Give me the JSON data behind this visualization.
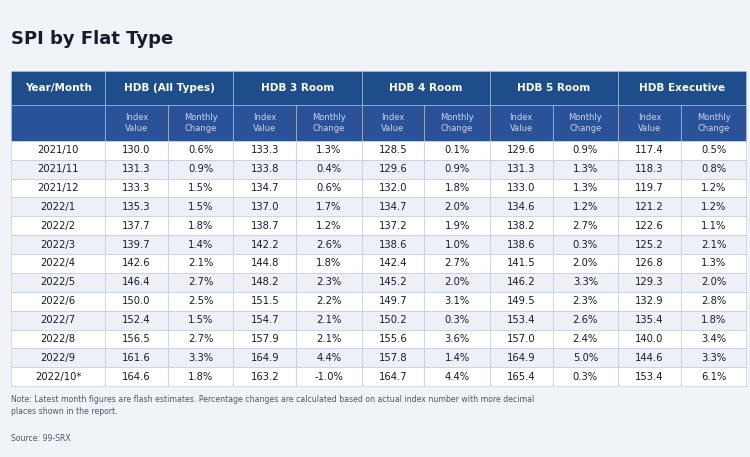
{
  "title": "SPI by Flat Type",
  "col_groups": [
    {
      "label": "Year/Month",
      "span": 1
    },
    {
      "label": "HDB (All Types)",
      "span": 2
    },
    {
      "label": "HDB 3 Room",
      "span": 2
    },
    {
      "label": "HDB 4 Room",
      "span": 2
    },
    {
      "label": "HDB 5 Room",
      "span": 2
    },
    {
      "label": "HDB Executive",
      "span": 2
    }
  ],
  "sub_headers": [
    "Index\nValue",
    "Monthly\nChange",
    "Index\nValue",
    "Monthly\nChange",
    "Index\nValue",
    "Monthly\nChange",
    "Index\nValue",
    "Monthly\nChange",
    "Index\nValue",
    "Monthly\nChange"
  ],
  "rows": [
    [
      "2021/10",
      "130.0",
      "0.6%",
      "133.3",
      "1.3%",
      "128.5",
      "0.1%",
      "129.6",
      "0.9%",
      "117.4",
      "0.5%"
    ],
    [
      "2021/11",
      "131.3",
      "0.9%",
      "133.8",
      "0.4%",
      "129.6",
      "0.9%",
      "131.3",
      "1.3%",
      "118.3",
      "0.8%"
    ],
    [
      "2021/12",
      "133.3",
      "1.5%",
      "134.7",
      "0.6%",
      "132.0",
      "1.8%",
      "133.0",
      "1.3%",
      "119.7",
      "1.2%"
    ],
    [
      "2022/1",
      "135.3",
      "1.5%",
      "137.0",
      "1.7%",
      "134.7",
      "2.0%",
      "134.6",
      "1.2%",
      "121.2",
      "1.2%"
    ],
    [
      "2022/2",
      "137.7",
      "1.8%",
      "138.7",
      "1.2%",
      "137.2",
      "1.9%",
      "138.2",
      "2.7%",
      "122.6",
      "1.1%"
    ],
    [
      "2022/3",
      "139.7",
      "1.4%",
      "142.2",
      "2.6%",
      "138.6",
      "1.0%",
      "138.6",
      "0.3%",
      "125.2",
      "2.1%"
    ],
    [
      "2022/4",
      "142.6",
      "2.1%",
      "144.8",
      "1.8%",
      "142.4",
      "2.7%",
      "141.5",
      "2.0%",
      "126.8",
      "1.3%"
    ],
    [
      "2022/5",
      "146.4",
      "2.7%",
      "148.2",
      "2.3%",
      "145.2",
      "2.0%",
      "146.2",
      "3.3%",
      "129.3",
      "2.0%"
    ],
    [
      "2022/6",
      "150.0",
      "2.5%",
      "151.5",
      "2.2%",
      "149.7",
      "3.1%",
      "149.5",
      "2.3%",
      "132.9",
      "2.8%"
    ],
    [
      "2022/7",
      "152.4",
      "1.5%",
      "154.7",
      "2.1%",
      "150.2",
      "0.3%",
      "153.4",
      "2.6%",
      "135.4",
      "1.8%"
    ],
    [
      "2022/8",
      "156.5",
      "2.7%",
      "157.9",
      "2.1%",
      "155.6",
      "3.6%",
      "157.0",
      "2.4%",
      "140.0",
      "3.4%"
    ],
    [
      "2022/9",
      "161.6",
      "3.3%",
      "164.9",
      "4.4%",
      "157.8",
      "1.4%",
      "164.9",
      "5.0%",
      "144.6",
      "3.3%"
    ],
    [
      "2022/10*",
      "164.6",
      "1.8%",
      "163.2",
      "-1.0%",
      "164.7",
      "4.4%",
      "165.4",
      "0.3%",
      "153.4",
      "6.1%"
    ]
  ],
  "note": "Note: Latest month figures are flash estimates. Percentage changes are calculated based on actual index number with more decimal\nplaces shown in the report.",
  "source": "Source: 99-SRX",
  "header_bg": "#1e4d8c",
  "header_text": "#ffffff",
  "subheader_bg": "#2a5298",
  "subheader_text": "#c8d4e8",
  "row_odd_bg": "#ffffff",
  "row_even_bg": "#edf1f7",
  "row_text": "#1a1a2e",
  "border_color": "#b8c4d4",
  "title_color": "#1a1a2e",
  "note_color": "#555566",
  "fig_bg": "#f0f4f8"
}
